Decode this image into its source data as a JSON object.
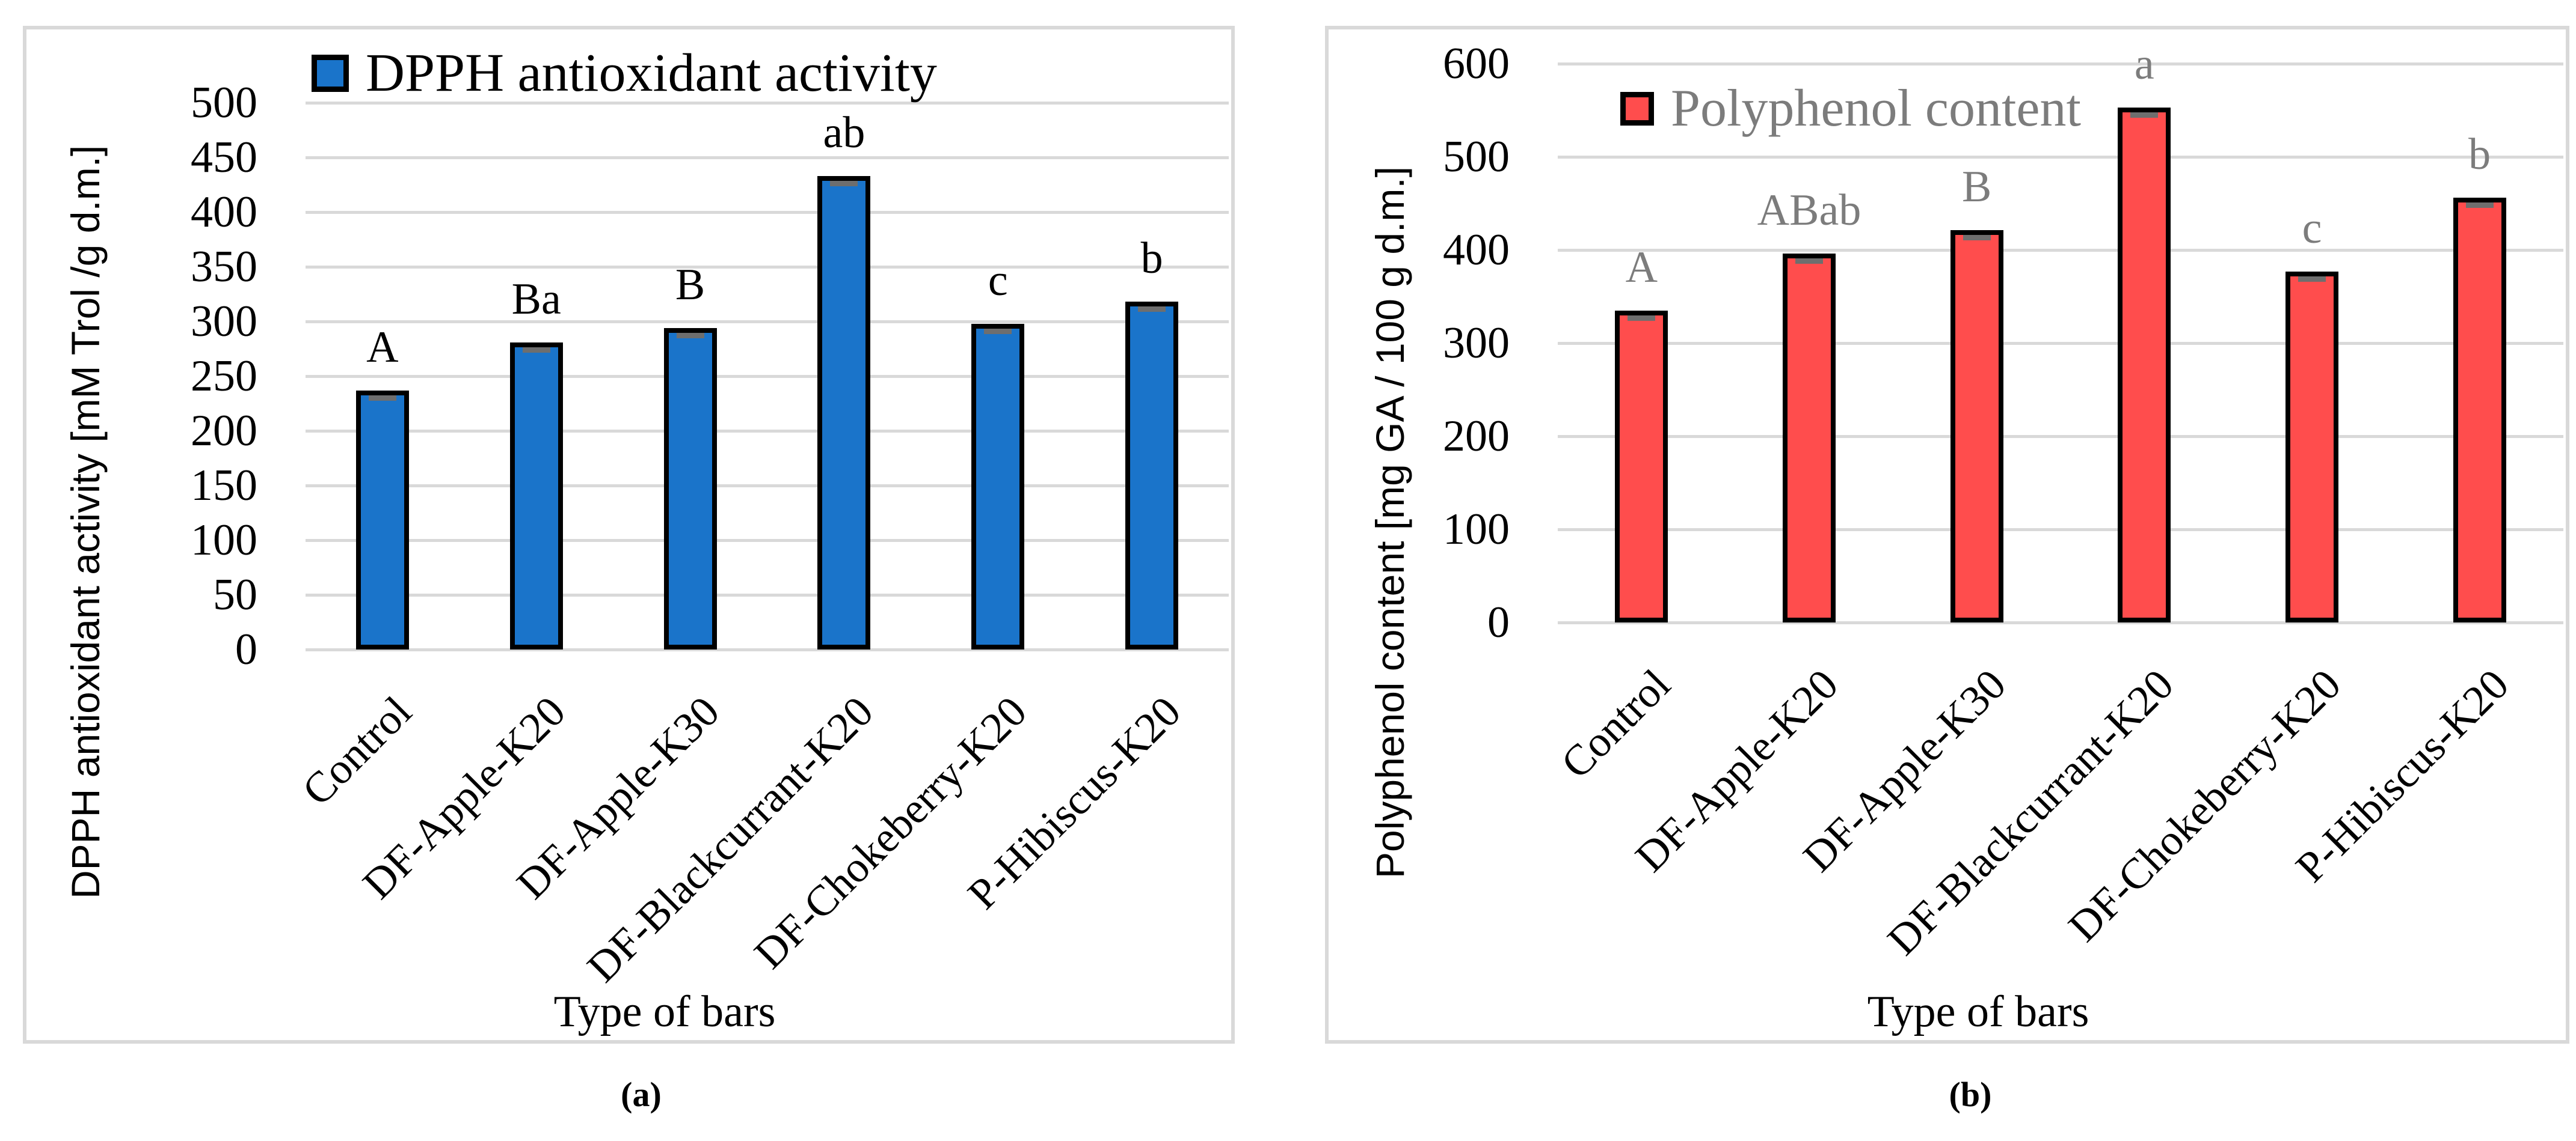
{
  "captions": {
    "a": "(a)",
    "b": "(b)"
  },
  "colors": {
    "dpph_bar": "#1A74CA",
    "polyphenol_bar": "#FF4D4D",
    "gridline": "#D9D9D9",
    "panel_border": "#D9D9D9",
    "secondary_text": "#7C7C7C",
    "error_cap": "#6E6E6E",
    "bar_outline": "#000000"
  },
  "chart_data": [
    {
      "type": "bar",
      "panel": "a",
      "legend_label": "DPPH antioxidant activity",
      "legend_position": "top-inside",
      "xlabel": "Type of bars",
      "ylabel": "DPPH antioxidant activity [mM Trol /g d.m.]",
      "ylim": [
        0,
        500
      ],
      "ytick_step": 50,
      "yticks": [
        0,
        50,
        100,
        150,
        200,
        250,
        300,
        350,
        400,
        450,
        500
      ],
      "grid": true,
      "categories": [
        "Control",
        "DF-Apple-K20",
        "DF-Apple-K30",
        "DF-Blackcurrant-K20",
        "DF-Chokeberry-K20",
        "P-Hibiscus-K20"
      ],
      "values": [
        237,
        281,
        294,
        433,
        298,
        318
      ],
      "significance_letters": [
        "A",
        "Ba",
        "B",
        "ab",
        "c",
        "b"
      ],
      "error_bars": true,
      "bar_color": "#1A74CA",
      "legend_color": "#000000",
      "letter_color": "#000000"
    },
    {
      "type": "bar",
      "panel": "b",
      "legend_label": "Polyphenol content",
      "legend_position": "top-inside",
      "xlabel": "Type of bars",
      "ylabel": "Polyphenol  content [mg GA / 100 g d.m.]",
      "ylim": [
        0,
        600
      ],
      "ytick_step": 100,
      "yticks": [
        0,
        100,
        200,
        300,
        400,
        500,
        600
      ],
      "grid": true,
      "categories": [
        "Control",
        "DF-Apple-K20",
        "DF-Apple-K30",
        "DF-Blackcurrant-K20",
        "DF-Chokeberry-K20",
        "P-Hibiscus-K20"
      ],
      "values": [
        335,
        396,
        421,
        553,
        377,
        456
      ],
      "significance_letters": [
        "A",
        "ABab",
        "B",
        "a",
        "c",
        "b"
      ],
      "error_bars": true,
      "bar_color": "#FF4D4D",
      "legend_color": "#7C7C7C",
      "letter_color": "#7C7C7C"
    }
  ]
}
